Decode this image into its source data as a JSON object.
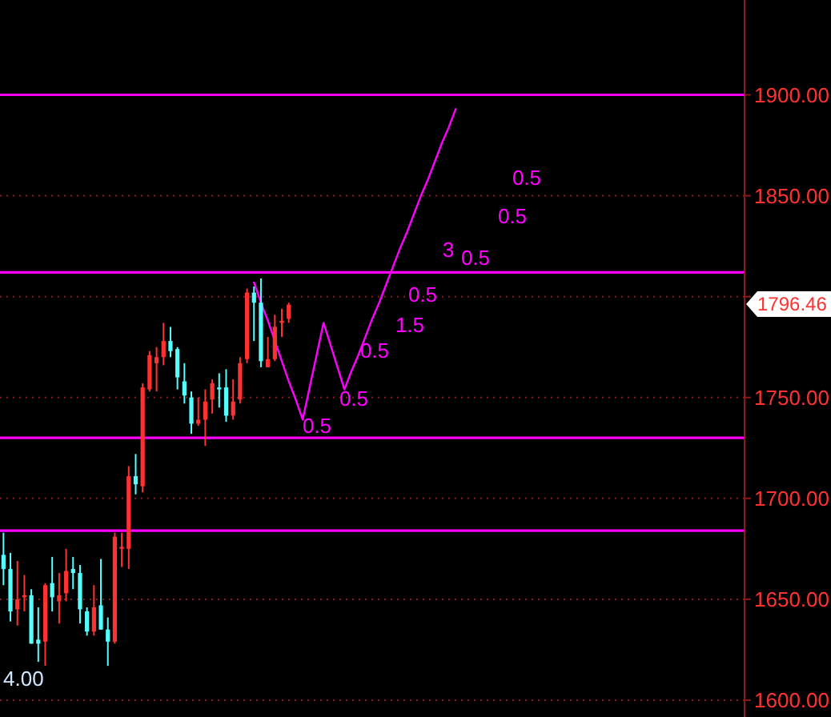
{
  "chart_data": {
    "type": "candlestick",
    "categories": [
      null,
      null,
      null,
      null,
      null,
      null,
      null,
      null,
      null,
      null,
      null,
      null,
      null,
      null,
      null,
      null,
      null,
      null,
      null,
      null,
      null,
      null,
      null,
      null,
      null,
      null,
      null,
      null,
      null,
      null,
      null,
      null,
      null,
      null,
      null,
      null,
      null,
      null,
      null,
      null,
      null,
      null,
      null,
      null,
      null,
      null,
      null,
      null,
      null,
      null,
      null,
      null,
      null,
      null,
      null,
      null,
      null,
      null,
      null,
      null,
      null,
      null,
      null,
      null,
      null,
      null,
      null,
      null,
      null,
      null,
      null,
      null,
      null,
      null,
      null,
      null,
      null,
      null,
      null,
      null,
      null,
      null,
      null,
      null,
      null,
      null,
      null,
      null,
      null,
      null,
      null,
      null,
      null,
      null,
      null,
      null,
      null,
      null,
      null,
      null,
      null,
      null,
      null,
      null,
      null,
      null,
      null
    ],
    "ohlc": [
      [
        1672,
        1683,
        1657,
        1665
      ],
      [
        1665,
        1673,
        1639,
        1644
      ],
      [
        1645,
        1669,
        1637,
        1650
      ],
      [
        1651,
        1662,
        1644,
        1652
      ],
      [
        1652,
        1655,
        1628,
        1628
      ],
      [
        1630,
        1646,
        1619,
        1628
      ],
      [
        1629,
        1658,
        1617,
        1657
      ],
      [
        1658,
        1671,
        1644,
        1651
      ],
      [
        1649,
        1663,
        1638,
        1652
      ],
      [
        1653,
        1675,
        1649,
        1664
      ],
      [
        1665,
        1671,
        1655,
        1663
      ],
      [
        1663,
        1667,
        1638,
        1645
      ],
      [
        1644,
        1646,
        1632,
        1634
      ],
      [
        1634,
        1657,
        1632,
        1646
      ],
      [
        1647,
        1670,
        1635,
        1635
      ],
      [
        1635,
        1641,
        1617,
        1629
      ],
      [
        1629,
        1683,
        1628,
        1681
      ],
      [
        1675,
        1683,
        1666,
        1676
      ],
      [
        1675,
        1716,
        1665,
        1711
      ],
      [
        1711,
        1722,
        1702,
        1707
      ],
      [
        1706,
        1757,
        1703,
        1755
      ],
      [
        1754,
        1773,
        1753,
        1771
      ],
      [
        1767,
        1775,
        1753,
        1770
      ],
      [
        1770,
        1787,
        1766,
        1778
      ],
      [
        1778,
        1785,
        1770,
        1773
      ],
      [
        1774,
        1775,
        1754,
        1760
      ],
      [
        1758,
        1767,
        1747,
        1751
      ],
      [
        1750,
        1753,
        1732,
        1737
      ],
      [
        1737,
        1750,
        1736,
        1739
      ],
      [
        1739,
        1754,
        1726,
        1748
      ],
      [
        1749,
        1759,
        1742,
        1757
      ],
      [
        1755,
        1762,
        1745,
        1754
      ],
      [
        1755,
        1764,
        1738,
        1741
      ],
      [
        1741,
        1759,
        1739,
        1748
      ],
      [
        1749,
        1770,
        1747,
        1767
      ],
      [
        1769,
        1804,
        1767,
        1802
      ],
      [
        1802,
        1805,
        1778,
        1797
      ],
      [
        1797,
        1809,
        1765,
        1768
      ],
      [
        1765,
        1780,
        1765,
        1769
      ],
      [
        1769,
        1791,
        1768,
        1785
      ],
      [
        1787,
        1794,
        1780,
        1788
      ],
      [
        1789,
        1797,
        1787,
        1796
      ],
      null,
      null,
      null,
      null,
      null,
      null,
      null,
      null,
      null,
      null,
      null,
      null,
      null,
      null,
      null,
      null,
      null,
      null,
      null,
      null,
      null,
      null,
      null,
      null,
      null,
      null,
      null,
      null,
      null,
      null,
      null,
      null,
      null,
      null,
      null,
      null,
      null,
      null,
      null,
      null,
      null,
      null,
      null,
      null,
      null,
      null,
      null,
      null,
      null,
      null,
      null,
      null,
      null,
      null,
      null,
      null,
      null,
      null,
      null,
      null,
      null,
      null,
      null,
      null,
      null
    ],
    "series": [
      {
        "type": "line",
        "color": "#ff00ff",
        "values": [
          null,
          null,
          null,
          null,
          null,
          null,
          null,
          null,
          null,
          null,
          null,
          null,
          null,
          null,
          null,
          null,
          null,
          null,
          null,
          null,
          null,
          null,
          null,
          null,
          null,
          null,
          null,
          null,
          null,
          null,
          null,
          null,
          null,
          null,
          null,
          null,
          1807,
          1797,
          1788,
          1778,
          1768,
          1758,
          1749,
          1739,
          1755,
          1771,
          1787,
          1776,
          1765,
          1754,
          1763,
          1771,
          1780,
          1789,
          1797,
          1806,
          1815,
          1824,
          1832,
          1841,
          1850,
          1858,
          1867,
          1876,
          1884,
          1893,
          null,
          null,
          null,
          null,
          null,
          null,
          null,
          null,
          null,
          null,
          null,
          null,
          null,
          null,
          null,
          null,
          null,
          null,
          null,
          null,
          null,
          null,
          null,
          null,
          null,
          null,
          null,
          null,
          null,
          null,
          null,
          null,
          null,
          null,
          null,
          null,
          null,
          null,
          null,
          null,
          null
        ]
      }
    ],
    "ylim": [
      1598,
      1947
    ],
    "yticks": [
      {
        "value": 1600,
        "label": "1600.00"
      },
      {
        "value": 1650,
        "label": "1650.00"
      },
      {
        "value": 1700,
        "label": "1700.00"
      },
      {
        "value": 1750,
        "label": "1750.00"
      },
      {
        "value": 1800,
        "label": null
      },
      {
        "value": 1850,
        "label": "1850.00"
      },
      {
        "value": 1900,
        "label": "1900.00"
      }
    ],
    "tick_labels": "y",
    "grid": "y",
    "ref_lines": [
      {
        "axis": "y",
        "value": 1900,
        "color": "#ff00ff"
      },
      {
        "axis": "y",
        "value": 1812,
        "color": "#ff00ff"
      },
      {
        "axis": "y",
        "value": 1730,
        "color": "#ff00ff"
      },
      {
        "axis": "y",
        "value": 1684,
        "color": "#ff00ff"
      }
    ],
    "annotations": [
      "0.5",
      "0.5",
      "0.5",
      "1.5",
      "0.5",
      "3",
      "0.5",
      "0.5",
      "0.5",
      "1796.46",
      "4.00"
    ]
  }
}
